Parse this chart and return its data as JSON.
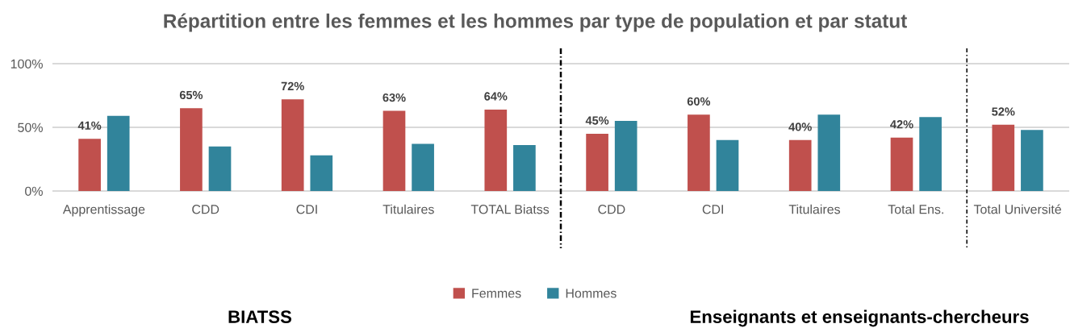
{
  "chart_data": {
    "type": "bar",
    "title": "Répartition entre les femmes et les hommes par type de population et par statut",
    "categories": [
      "Apprentissage",
      "CDD",
      "CDI",
      "Titulaires",
      "TOTAL Biatss",
      "CDD",
      "CDI",
      "Titulaires",
      "Total Ens.",
      "Total Université"
    ],
    "series": [
      {
        "name": "Femmes",
        "color": "#c0504d",
        "values": [
          41,
          65,
          72,
          63,
          64,
          45,
          60,
          40,
          42,
          52
        ],
        "value_labels": [
          "41%",
          "65%",
          "72%",
          "63%",
          "64%",
          "45%",
          "60%",
          "40%",
          "42%",
          "52%"
        ]
      },
      {
        "name": "Hommes",
        "color": "#31849b",
        "values": [
          59,
          35,
          28,
          37,
          36,
          55,
          40,
          60,
          58,
          48
        ]
      }
    ],
    "ylim": [
      0,
      100
    ],
    "yticks": [
      {
        "value": 0,
        "label": "0%"
      },
      {
        "value": 50,
        "label": "50%"
      },
      {
        "value": 100,
        "label": "100%"
      }
    ],
    "grid": "y",
    "legend": "bottom",
    "annotations": [
      "BIATSS",
      "Enseignants et enseignants-chercheurs"
    ]
  }
}
